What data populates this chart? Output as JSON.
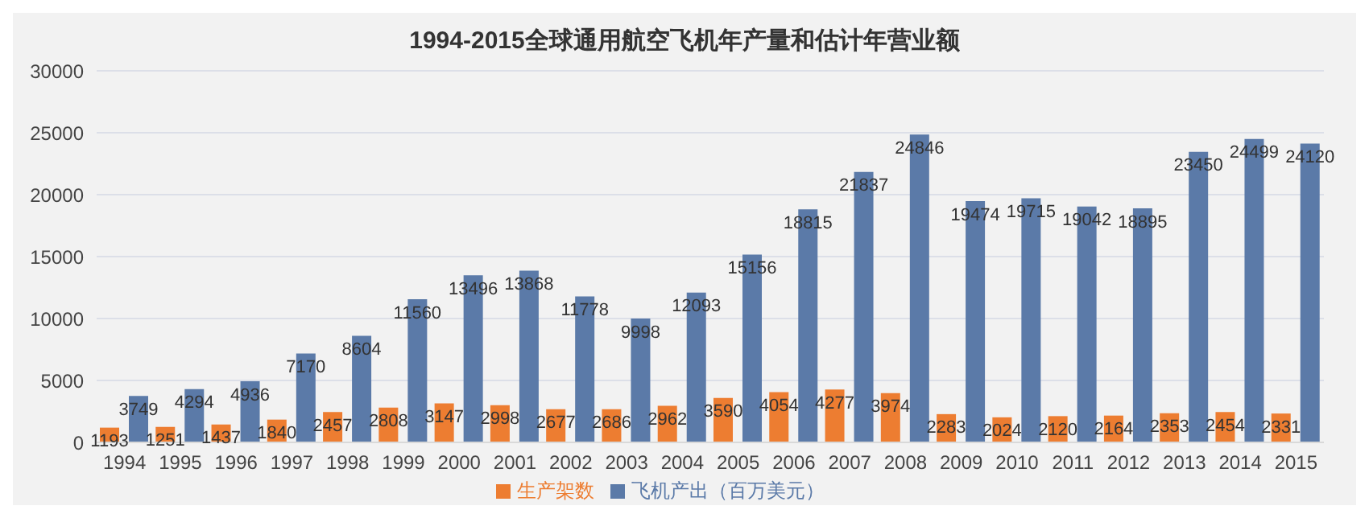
{
  "chart_data": {
    "type": "bar",
    "title": "1994-2015全球通用航空飞机年产量和估计年营业额",
    "categories": [
      "1994",
      "1995",
      "1996",
      "1997",
      "1998",
      "1999",
      "2000",
      "2001",
      "2002",
      "2003",
      "2004",
      "2005",
      "2006",
      "2007",
      "2008",
      "2009",
      "2010",
      "2011",
      "2012",
      "2013",
      "2014",
      "2015"
    ],
    "series": [
      {
        "name": "生产架数",
        "color": "#ed7d31",
        "values": [
          1193,
          1251,
          1437,
          1840,
          2457,
          2808,
          3147,
          2998,
          2677,
          2686,
          2962,
          3590,
          4054,
          4277,
          3974,
          2283,
          2024,
          2120,
          2164,
          2353,
          2454,
          2331
        ]
      },
      {
        "name": "飞机产出（百万美元）",
        "color": "#5b7aa8",
        "values": [
          3749,
          4294,
          4936,
          7170,
          8604,
          11560,
          13496,
          13868,
          11778,
          9998,
          12093,
          15156,
          18815,
          21837,
          24846,
          19474,
          19715,
          19042,
          18895,
          23450,
          24499,
          24120
        ]
      }
    ],
    "ylim": [
      0,
      30000
    ],
    "yticks": [
      0,
      5000,
      10000,
      15000,
      20000,
      25000,
      30000
    ],
    "grid": "y",
    "legend": "bottom",
    "data_labels": true
  }
}
